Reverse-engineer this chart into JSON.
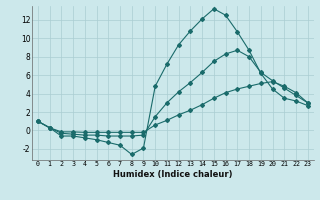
{
  "xlabel": "Humidex (Indice chaleur)",
  "bg_color": "#cce8eb",
  "grid_color": "#aacdd2",
  "line_color": "#1a6b6b",
  "xlim": [
    -0.5,
    23.5
  ],
  "ylim": [
    -3.2,
    13.5
  ],
  "xticks": [
    0,
    1,
    2,
    3,
    4,
    5,
    6,
    7,
    8,
    9,
    10,
    11,
    12,
    13,
    14,
    15,
    16,
    17,
    18,
    19,
    20,
    21,
    22,
    23
  ],
  "yticks": [
    -2,
    0,
    2,
    4,
    6,
    8,
    10,
    12
  ],
  "series": [
    {
      "x": [
        0,
        1,
        2,
        3,
        4,
        5,
        6,
        7,
        8,
        9,
        10,
        11,
        12,
        13,
        14,
        15,
        16,
        17,
        18,
        19,
        20,
        21,
        22,
        23
      ],
      "y": [
        1.0,
        0.3,
        -0.6,
        -0.6,
        -0.8,
        -1.0,
        -1.3,
        -1.6,
        -2.6,
        -1.9,
        4.8,
        7.2,
        9.3,
        10.8,
        12.1,
        13.2,
        12.5,
        10.7,
        8.7,
        6.2,
        4.5,
        3.5,
        3.2,
        2.7
      ]
    },
    {
      "x": [
        0,
        1,
        2,
        3,
        4,
        5,
        6,
        7,
        8,
        9,
        10,
        11,
        12,
        13,
        14,
        15,
        16,
        17,
        18,
        19,
        20,
        21,
        22,
        23
      ],
      "y": [
        1.0,
        0.3,
        -0.3,
        -0.4,
        -0.5,
        -0.5,
        -0.6,
        -0.6,
        -0.6,
        -0.5,
        1.5,
        3.0,
        4.2,
        5.2,
        6.3,
        7.5,
        8.3,
        8.7,
        8.0,
        6.3,
        5.4,
        4.6,
        3.8,
        3.0
      ]
    },
    {
      "x": [
        0,
        1,
        2,
        3,
        4,
        5,
        6,
        7,
        8,
        9,
        10,
        11,
        12,
        13,
        14,
        15,
        16,
        17,
        18,
        19,
        20,
        21,
        22,
        23
      ],
      "y": [
        1.0,
        0.3,
        -0.15,
        -0.15,
        -0.2,
        -0.2,
        -0.2,
        -0.2,
        -0.2,
        -0.2,
        0.6,
        1.1,
        1.7,
        2.2,
        2.8,
        3.5,
        4.1,
        4.5,
        4.8,
        5.1,
        5.3,
        4.8,
        4.1,
        3.0
      ]
    }
  ]
}
